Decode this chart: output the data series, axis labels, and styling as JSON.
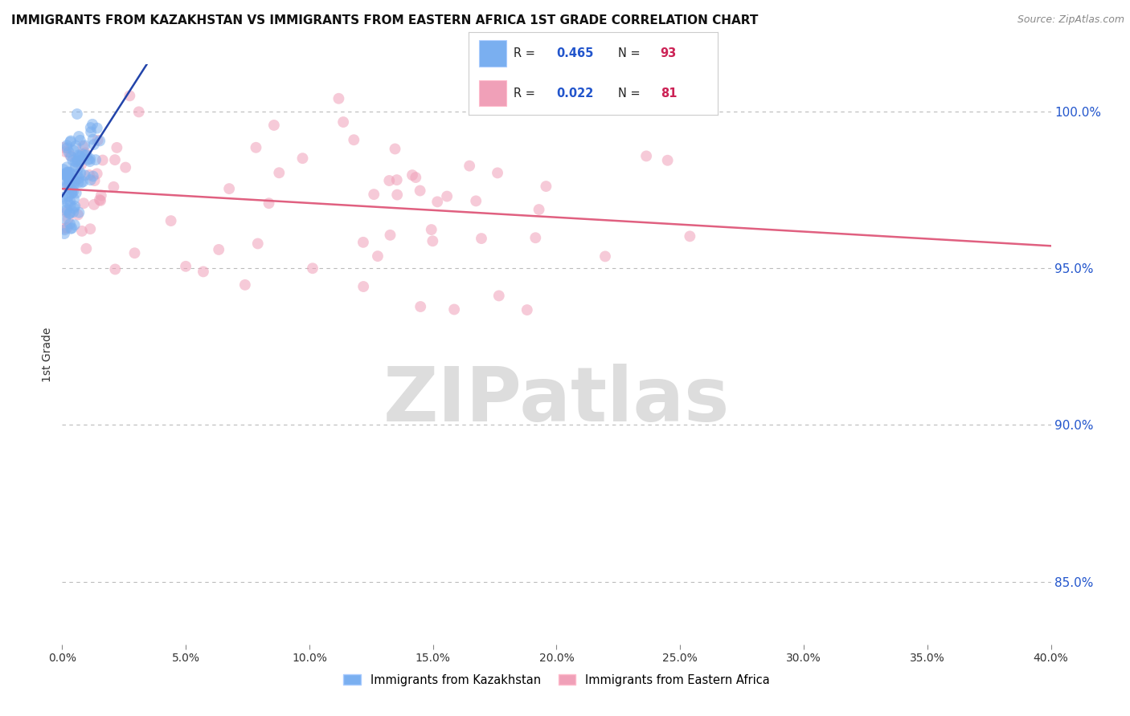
{
  "title": "IMMIGRANTS FROM KAZAKHSTAN VS IMMIGRANTS FROM EASTERN AFRICA 1ST GRADE CORRELATION CHART",
  "source": "Source: ZipAtlas.com",
  "ylabel": "1st Grade",
  "blue_R": 0.465,
  "blue_N": 93,
  "pink_R": 0.022,
  "pink_N": 81,
  "legend_blue": "Immigrants from Kazakhstan",
  "legend_pink": "Immigrants from Eastern Africa",
  "blue_color": "#7aaff0",
  "pink_color": "#f0a0b8",
  "blue_line_color": "#2244aa",
  "pink_line_color": "#e06080",
  "legend_R_color": "#2255cc",
  "legend_N_color": "#cc2255",
  "background_color": "#ffffff",
  "grid_color": "#bbbbbb",
  "watermark_text": "ZIPatlas",
  "watermark_color": "#dddddd",
  "x_min": 0.0,
  "x_max": 40.0,
  "y_min": 83.0,
  "y_max": 101.5,
  "y_ticks": [
    85.0,
    90.0,
    95.0,
    100.0
  ],
  "x_ticks": [
    0.0,
    5.0,
    10.0,
    15.0,
    20.0,
    25.0,
    30.0,
    35.0,
    40.0
  ]
}
